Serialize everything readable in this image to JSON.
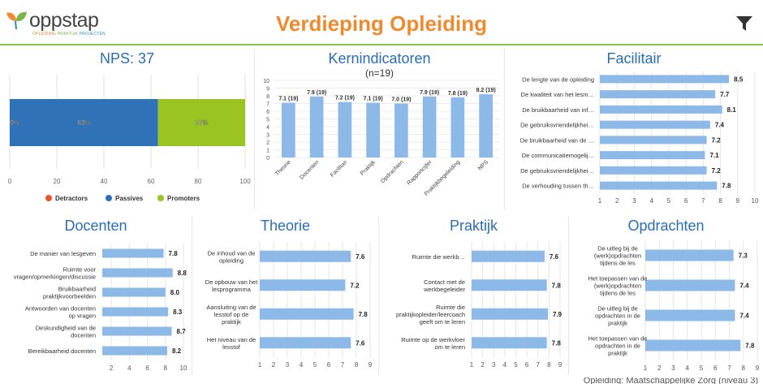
{
  "header": {
    "logo_word": "oppstap",
    "logo_sub": [
      "OPLEIDING",
      "PRAKTIJK",
      "PROJECTEN"
    ],
    "title": "Verdieping Opleiding",
    "filter_icon": "filter-icon"
  },
  "colors": {
    "accent_title": "#f08a2e",
    "panel_title": "#2a6db5",
    "bar": "#8cb9e8",
    "detractors": "#e8552a",
    "passives": "#2f72b8",
    "promoters": "#9ac421"
  },
  "footer": {
    "text": "Opleiding: Maatschappelijke Zorg (niveau 3)"
  },
  "chart_data": [
    {
      "id": "nps",
      "type": "bar",
      "orientation": "horizontal-stacked",
      "title": "NPS: 37",
      "xlim": [
        0,
        100
      ],
      "xticks": [
        0,
        20,
        40,
        60,
        80,
        100
      ],
      "series": [
        {
          "name": "Detractors",
          "color": "#e8552a",
          "value": 0,
          "label": "0%"
        },
        {
          "name": "Passives",
          "color": "#2f72b8",
          "value": 63,
          "label": "63%"
        },
        {
          "name": "Promoters",
          "color": "#9ac421",
          "value": 37,
          "label": "37%"
        }
      ]
    },
    {
      "id": "kern",
      "type": "bar",
      "orientation": "vertical",
      "title": "Kernindicatoren",
      "subtitle": "(n=19)",
      "ylim": [
        0,
        10
      ],
      "yticks": [
        0,
        1,
        2,
        3,
        4,
        5,
        6,
        7,
        8,
        9,
        10
      ],
      "categories": [
        "Theorie",
        "Docenten",
        "Facilitair",
        "Praktijk",
        "Opdrachten",
        "Rapportcijfer",
        "Praktijkbegeleiding",
        "NPS"
      ],
      "values": [
        7.1,
        7.9,
        7.2,
        7.1,
        7.0,
        7.9,
        7.8,
        8.2
      ],
      "labels": [
        "7.1 (19)",
        "7.9 (19)",
        "7.2 (19)",
        "7.1 (19)",
        "7.0 (19)",
        "7.9 (19)",
        "7.8 (19)",
        "8.2 (19)"
      ]
    },
    {
      "id": "faci",
      "type": "bar",
      "orientation": "horizontal",
      "title": "Facilitair",
      "xlim": [
        1,
        10
      ],
      "xticks": [
        1,
        2,
        3,
        4,
        5,
        6,
        7,
        8,
        9,
        10
      ],
      "categories": [
        "De lengte van de opleiding",
        "De kwaliteit van het lesm…",
        "De bruikbaarheid van inf…",
        "De gebruiksvriendelijkhei…",
        "De bruikbaarheid van de …",
        "De communicatiemogelij…",
        "De gebruiksvriendelijkhei…",
        "De verhouding tussen th…"
      ],
      "values": [
        8.5,
        7.7,
        8.1,
        7.4,
        7.2,
        7.1,
        7.2,
        7.8
      ]
    },
    {
      "id": "doc",
      "type": "bar",
      "orientation": "horizontal",
      "title": "Docenten",
      "xlim": [
        1,
        10
      ],
      "xticks": [
        2,
        4,
        6,
        8,
        10
      ],
      "categories": [
        "De manier van lesgeven",
        "Ruimte voor vragen/opmerkingen/discussie",
        "Bruikbaarheid praktijkvoorbeelden",
        "Antwoorden van docenten op vragen",
        "Deskundigheid van de docenten",
        "Bereikbaarheid docenten"
      ],
      "values": [
        7.8,
        8.8,
        8.0,
        8.3,
        8.7,
        8.2
      ]
    },
    {
      "id": "theo",
      "type": "bar",
      "orientation": "horizontal",
      "title": "Theorie",
      "xlim": [
        1,
        9
      ],
      "xticks": [
        1,
        2,
        3,
        4,
        5,
        6,
        7,
        8,
        9
      ],
      "categories": [
        "De inhoud van de opleiding",
        "De opbouw van het lesprogramma",
        "Aansluiting van de lesstof op de praktijk",
        "Het niveau van de lesstof"
      ],
      "values": [
        7.6,
        7.2,
        7.8,
        7.6
      ]
    },
    {
      "id": "prak",
      "type": "bar",
      "orientation": "horizontal",
      "title": "Praktijk",
      "xlim": [
        1,
        9
      ],
      "xticks": [
        1,
        2,
        3,
        4,
        5,
        6,
        7,
        8,
        9
      ],
      "categories": [
        "Ruimte die werkb…",
        "Contact met de werkbegeleider",
        "Ruimte die praktijkopleider/leercoach geeft om te leren",
        "Ruimte op de werkvloer om te leren"
      ],
      "values": [
        7.6,
        7.8,
        7.9,
        7.8
      ]
    },
    {
      "id": "opdr",
      "type": "bar",
      "orientation": "horizontal",
      "title": "Opdrachten",
      "xlim": [
        1,
        9
      ],
      "xticks": [
        1,
        2,
        3,
        4,
        5,
        6,
        7,
        8,
        9
      ],
      "categories": [
        "De uitleg bij de (werk)opdrachten tijdens de les",
        "Het toepassen van de (werk)opdrachten tijdens de les",
        "De uitleg bij de opdrachten in de praktijk",
        "Het toepassen van de opdrachten in de praktijk"
      ],
      "values": [
        7.3,
        7.4,
        7.4,
        7.8
      ]
    }
  ]
}
